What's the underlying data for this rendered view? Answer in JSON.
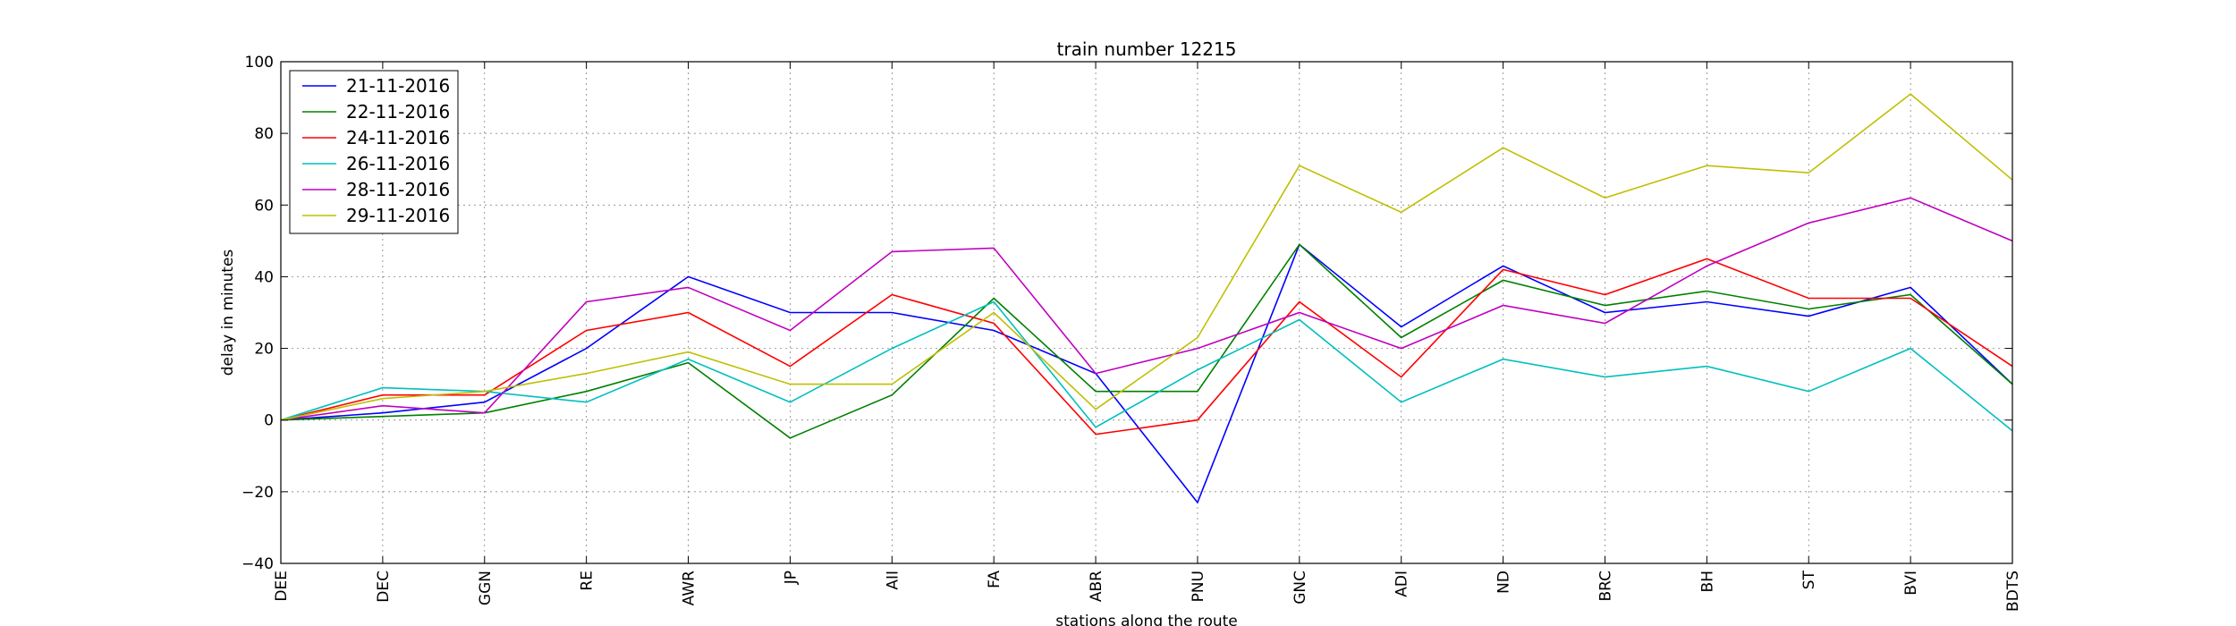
{
  "chart_data": {
    "type": "line",
    "title": "train number 12215",
    "xlabel": "stations along the route",
    "ylabel": "delay in minutes",
    "ylim": [
      -40,
      100
    ],
    "yticks": [
      -40,
      -20,
      0,
      20,
      40,
      60,
      80,
      100
    ],
    "ytick_labels": [
      "−40",
      "−20",
      "0",
      "20",
      "40",
      "60",
      "80",
      "100"
    ],
    "grid": true,
    "legend_position": "top-left",
    "categories": [
      "DEE",
      "DEC",
      "GGN",
      "RE",
      "AWR",
      "JP",
      "AII",
      "FA",
      "ABR",
      "PNU",
      "GNC",
      "ADI",
      "ND",
      "BRC",
      "BH",
      "ST",
      "BVI",
      "BDTS"
    ],
    "series": [
      {
        "name": "21-11-2016",
        "color": "#0000ff",
        "values": [
          0,
          2,
          5,
          20,
          40,
          30,
          30,
          25,
          13,
          -23,
          49,
          26,
          43,
          30,
          33,
          29,
          37,
          10
        ]
      },
      {
        "name": "22-11-2016",
        "color": "#008000",
        "values": [
          0,
          1,
          2,
          8,
          16,
          -5,
          7,
          34,
          8,
          8,
          49,
          23,
          39,
          32,
          36,
          31,
          35,
          10
        ]
      },
      {
        "name": "24-11-2016",
        "color": "#ff0000",
        "values": [
          0,
          7,
          7,
          25,
          30,
          15,
          35,
          27,
          -4,
          0,
          33,
          12,
          42,
          35,
          45,
          34,
          34,
          15
        ]
      },
      {
        "name": "26-11-2016",
        "color": "#00bfbf",
        "values": [
          0,
          9,
          8,
          5,
          17,
          5,
          20,
          33,
          -2,
          14,
          28,
          5,
          17,
          12,
          15,
          8,
          20,
          -3
        ]
      },
      {
        "name": "28-11-2016",
        "color": "#bf00bf",
        "values": [
          0,
          4,
          2,
          33,
          37,
          25,
          47,
          48,
          13,
          20,
          30,
          20,
          32,
          27,
          43,
          55,
          62,
          50
        ]
      },
      {
        "name": "29-11-2016",
        "color": "#bfbf00",
        "values": [
          0,
          6,
          8,
          13,
          19,
          10,
          10,
          30,
          3,
          23,
          71,
          58,
          76,
          62,
          71,
          69,
          91,
          67
        ]
      }
    ]
  }
}
